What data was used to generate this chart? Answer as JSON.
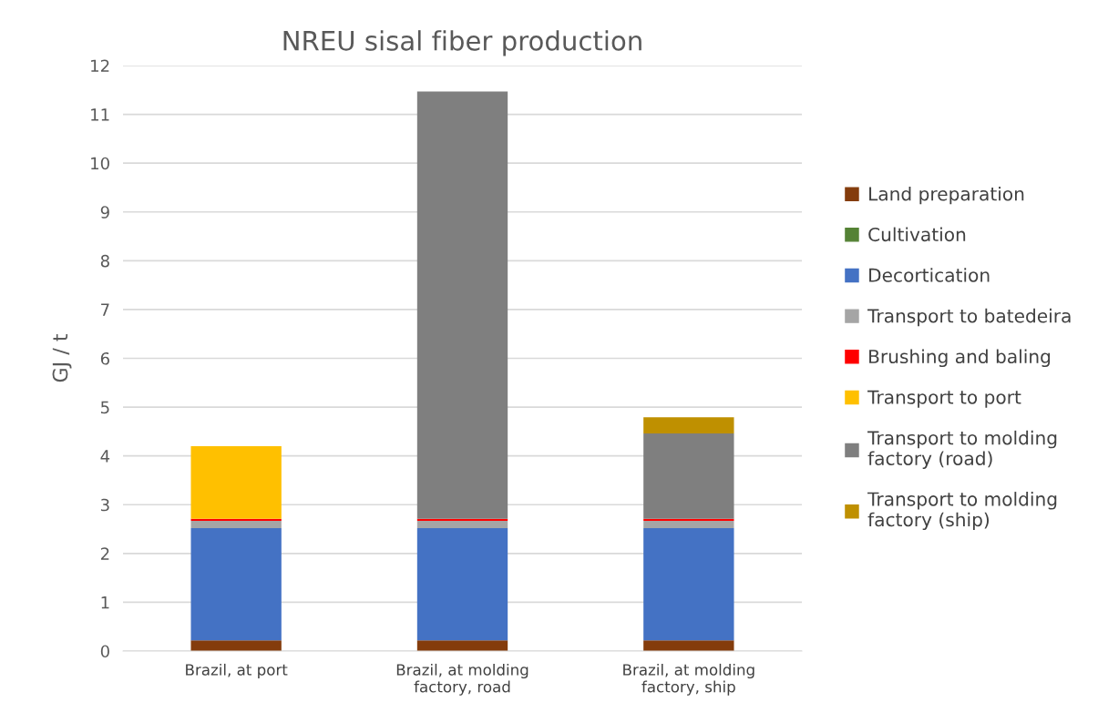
{
  "chart_data": {
    "type": "bar",
    "stacked": true,
    "title": "NREU sisal fiber production",
    "ylabel": "GJ / t",
    "categories": [
      "Brazil, at port",
      "Brazil, at molding\nfactory, road",
      "Brazil, at molding\nfactory, ship"
    ],
    "series": [
      {
        "name": "Land preparation",
        "color": "#843c0c",
        "values": [
          0.22,
          0.22,
          0.22
        ]
      },
      {
        "name": "Cultivation",
        "color": "#548235",
        "values": [
          0,
          0,
          0
        ]
      },
      {
        "name": "Decortication",
        "color": "#4472c4",
        "values": [
          2.3,
          2.3,
          2.3
        ]
      },
      {
        "name": "Transport to batedeira",
        "color": "#a5a5a5",
        "values": [
          0.15,
          0.15,
          0.15
        ]
      },
      {
        "name": "Brushing and baling",
        "color": "#ff0000",
        "values": [
          0.04,
          0.04,
          0.04
        ]
      },
      {
        "name": "Transport to port",
        "color": "#ffc000",
        "values": [
          1.49,
          0,
          0
        ]
      },
      {
        "name": "Transport to molding\nfactory (road)",
        "color": "#7f7f7f",
        "values": [
          0,
          8.76,
          1.75
        ]
      },
      {
        "name": "Transport to molding\nfactory (ship)",
        "color": "#bf9000",
        "values": [
          0,
          0,
          0.33
        ]
      }
    ],
    "ylim": [
      0,
      12
    ],
    "yticks": [
      0,
      1,
      2,
      3,
      4,
      5,
      6,
      7,
      8,
      9,
      10,
      11,
      12
    ],
    "grid": "y",
    "legend": "right"
  }
}
